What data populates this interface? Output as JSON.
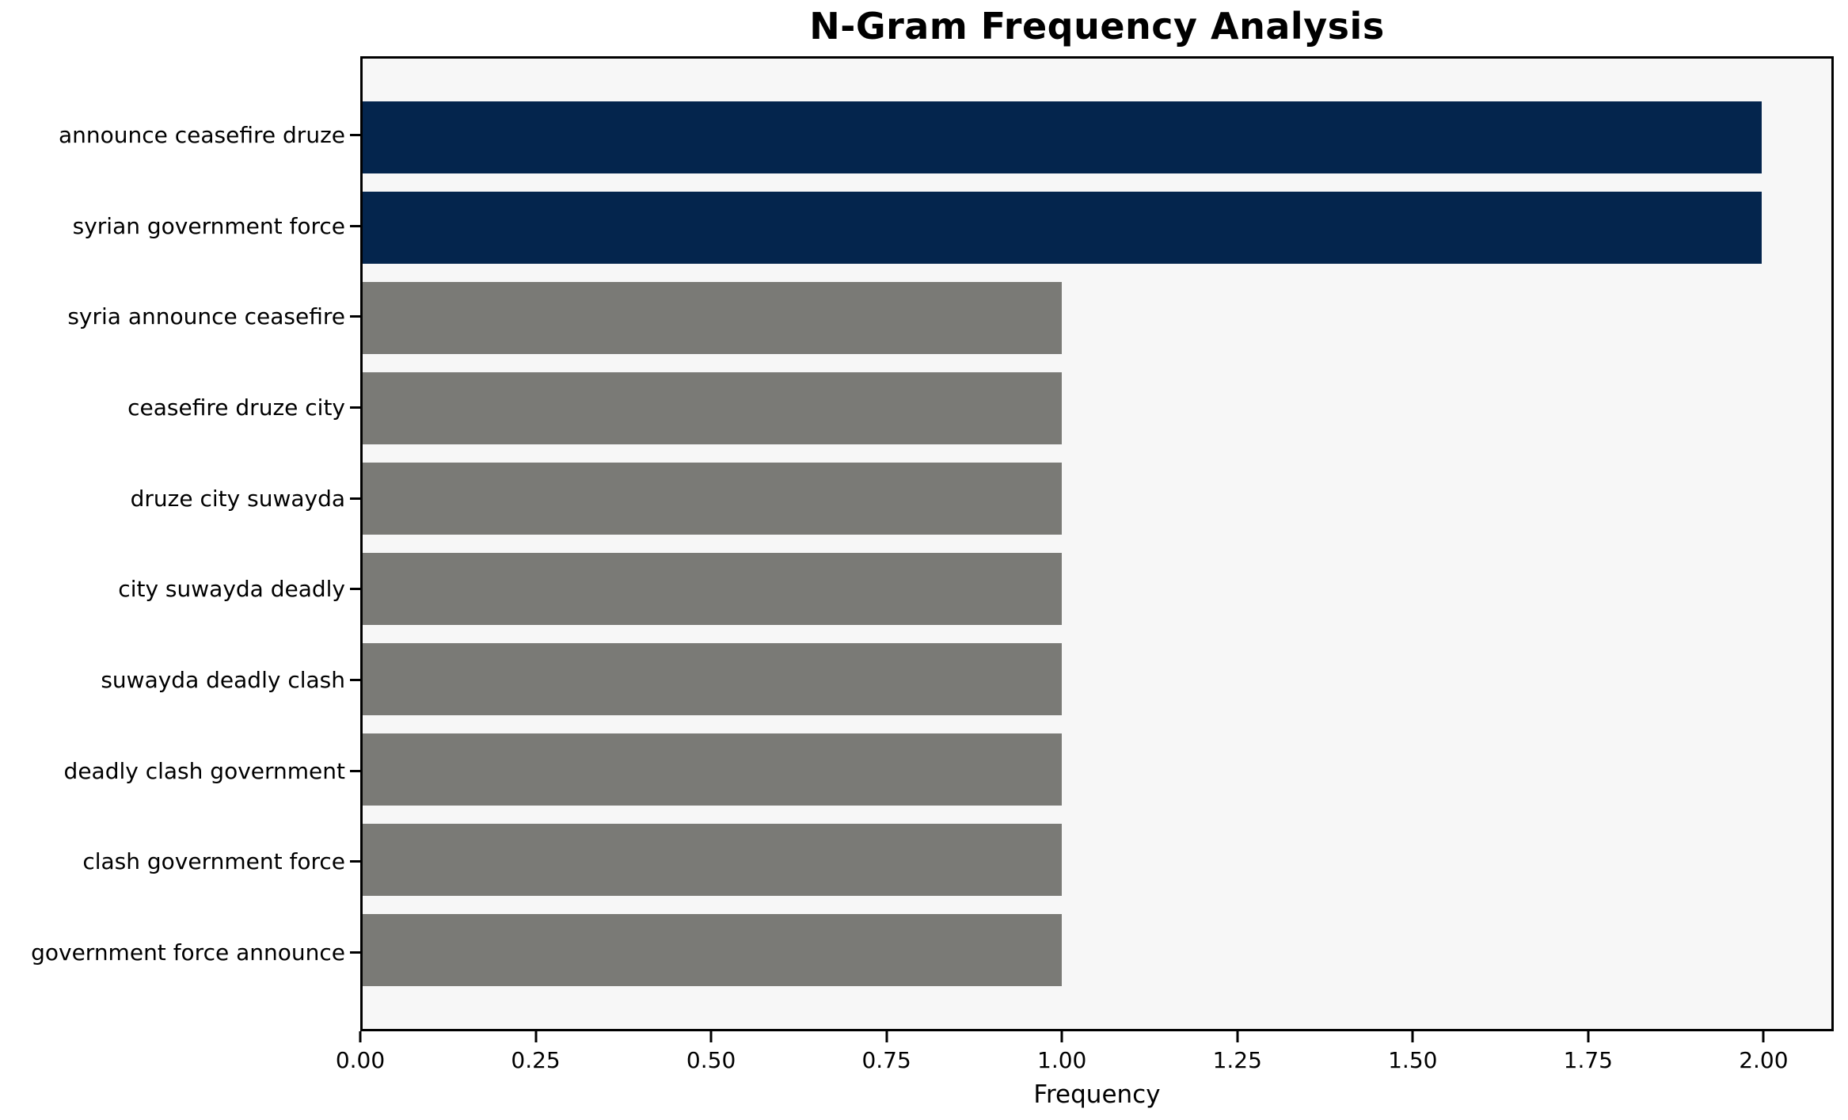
{
  "chart_data": {
    "type": "bar",
    "orientation": "horizontal",
    "title": "N-Gram Frequency Analysis",
    "xlabel": "Frequency",
    "ylabel": "",
    "categories": [
      "announce ceasefire druze",
      "syrian government force",
      "syria announce ceasefire",
      "ceasefire druze city",
      "druze city suwayda",
      "city suwayda deadly",
      "suwayda deadly clash",
      "deadly clash government",
      "clash government force",
      "government force announce"
    ],
    "values": [
      2,
      2,
      1,
      1,
      1,
      1,
      1,
      1,
      1,
      1
    ],
    "bar_colors": [
      "#04254d",
      "#04254d",
      "#7a7a76",
      "#7a7a76",
      "#7a7a76",
      "#7a7a76",
      "#7a7a76",
      "#7a7a76",
      "#7a7a76",
      "#7a7a76"
    ],
    "xlim": [
      0,
      2.1
    ],
    "xticks": [
      {
        "value": 0.0,
        "label": "0.00"
      },
      {
        "value": 0.25,
        "label": "0.25"
      },
      {
        "value": 0.5,
        "label": "0.50"
      },
      {
        "value": 0.75,
        "label": "0.75"
      },
      {
        "value": 1.0,
        "label": "1.00"
      },
      {
        "value": 1.25,
        "label": "1.25"
      },
      {
        "value": 1.5,
        "label": "1.50"
      },
      {
        "value": 1.75,
        "label": "1.75"
      },
      {
        "value": 2.0,
        "label": "2.00"
      }
    ],
    "grid": false,
    "legend_position": "none",
    "colors": {
      "highlight": "#04254d",
      "default": "#7a7a76",
      "plot_background": "#f7f7f7",
      "figure_background": "#ffffff",
      "spine": "#000000",
      "text": "#000000"
    }
  }
}
